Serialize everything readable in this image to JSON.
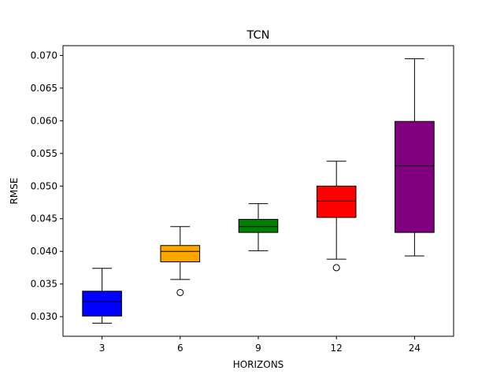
{
  "chart_data": {
    "type": "box",
    "title": "TCN",
    "xlabel": "HORIZONS",
    "ylabel": "RMSE",
    "ylim": [
      0.027,
      0.0715
    ],
    "yticks": [
      "0.030",
      "0.035",
      "0.040",
      "0.045",
      "0.050",
      "0.055",
      "0.060",
      "0.065",
      "0.070"
    ],
    "ytick_values": [
      0.03,
      0.035,
      0.04,
      0.045,
      0.05,
      0.055,
      0.06,
      0.065,
      0.07
    ],
    "grid": false,
    "categories": [
      "3",
      "6",
      "9",
      "12",
      "24"
    ],
    "boxes": [
      {
        "category": "3",
        "whisker_low": 0.029,
        "q1": 0.0301,
        "median": 0.0323,
        "q3": 0.0339,
        "whisker_high": 0.0374,
        "outliers": [],
        "color": "#0000ff"
      },
      {
        "category": "6",
        "whisker_low": 0.0357,
        "q1": 0.0384,
        "median": 0.04,
        "q3": 0.0409,
        "whisker_high": 0.0438,
        "outliers": [
          0.0337
        ],
        "color": "#ffa500"
      },
      {
        "category": "9",
        "whisker_low": 0.0401,
        "q1": 0.0429,
        "median": 0.0438,
        "q3": 0.0449,
        "whisker_high": 0.0473,
        "outliers": [],
        "color": "#008000"
      },
      {
        "category": "12",
        "whisker_low": 0.0388,
        "q1": 0.0452,
        "median": 0.0477,
        "q3": 0.05,
        "whisker_high": 0.0538,
        "outliers": [
          0.0375
        ],
        "color": "#ff0000"
      },
      {
        "category": "24",
        "whisker_low": 0.0393,
        "q1": 0.0429,
        "median": 0.0531,
        "q3": 0.0599,
        "whisker_high": 0.0695,
        "outliers": [],
        "color": "#800080"
      }
    ]
  }
}
